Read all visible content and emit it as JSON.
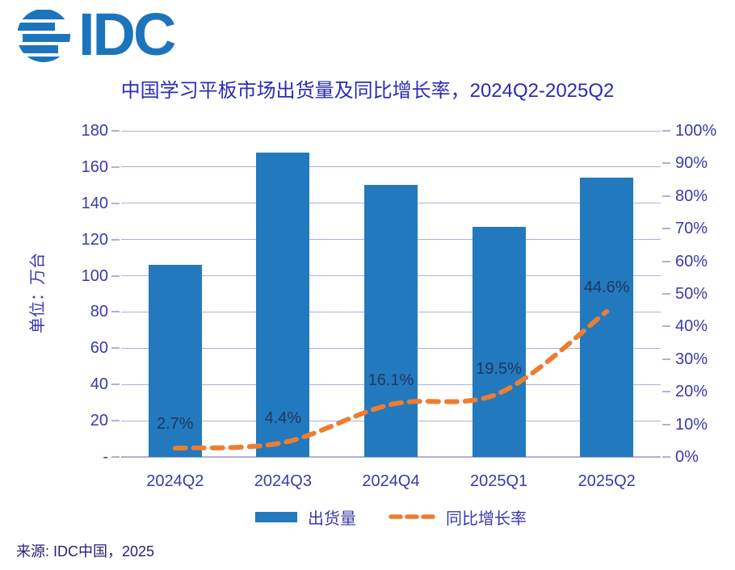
{
  "logo": {
    "text": "IDC"
  },
  "chart_data": {
    "type": "bar+line",
    "title": "中国学习平板市场出货量及同比增长率，2024Q2-2025Q2",
    "ylabel_left": "单位：万台",
    "categories": [
      "2024Q2",
      "2024Q3",
      "2024Q4",
      "2025Q1",
      "2025Q2"
    ],
    "series": [
      {
        "name": "出货量",
        "type": "bar",
        "axis": "left",
        "color": "#2379BD",
        "values": [
          106,
          168,
          150,
          127,
          154
        ]
      },
      {
        "name": "同比增长率",
        "type": "line",
        "axis": "right",
        "color": "#ED7D31",
        "style": "dashed",
        "smooth": true,
        "values": [
          2.7,
          4.4,
          16.1,
          19.5,
          44.6
        ],
        "labels": [
          "2.7%",
          "4.4%",
          "16.1%",
          "19.5%",
          "44.6%"
        ]
      }
    ],
    "left_axis": {
      "min": 0,
      "max": 180,
      "step": 20,
      "ticks_bottom_to_top": [
        "-",
        "20",
        "40",
        "60",
        "80",
        "100",
        "120",
        "140",
        "160",
        "180"
      ]
    },
    "right_axis": {
      "min": 0,
      "max": 100,
      "step": 10,
      "ticks_bottom_to_top": [
        "0%",
        "10%",
        "20%",
        "30%",
        "40%",
        "50%",
        "60%",
        "70%",
        "80%",
        "90%",
        "100%"
      ]
    },
    "grid": true,
    "legend_position": "bottom",
    "legend": [
      {
        "label": "出货量",
        "marker": "bar"
      },
      {
        "label": "同比增长率",
        "marker": "dashed-line"
      }
    ]
  },
  "source": "来源: IDC中国，2025",
  "colors": {
    "bar": "#2379BD",
    "line": "#ED7D31",
    "grid": "#B3ADDE",
    "axis_text": "#3A3AAC",
    "title_text": "#2B2BB8",
    "data_label": "#1F3864",
    "source_text": "#232377",
    "logo": "#1C75BC",
    "background": "#FFFFFF"
  }
}
